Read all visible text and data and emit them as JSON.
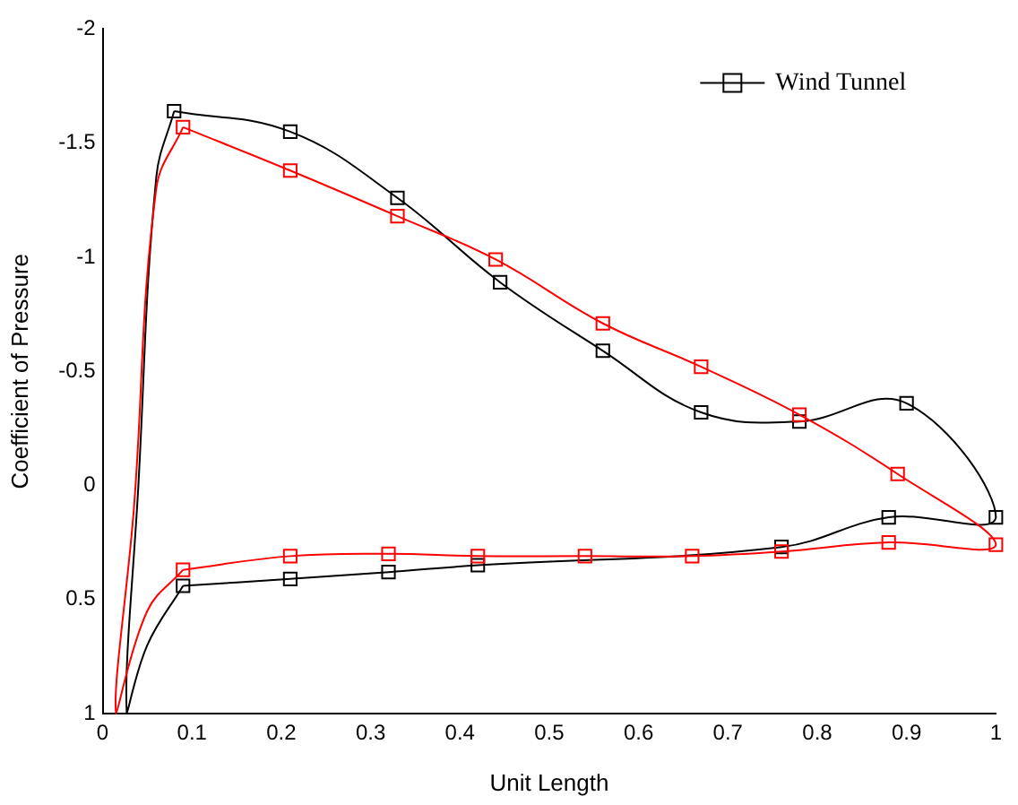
{
  "chart_data": {
    "type": "line",
    "xlabel": "Unit Length",
    "ylabel": "Coefficient of Pressure",
    "xlim": [
      0,
      1
    ],
    "xticks": [
      0,
      0.1,
      0.2,
      0.3,
      0.4,
      0.5,
      0.6,
      0.7,
      0.8,
      0.9,
      1
    ],
    "ylim": [
      1,
      -2
    ],
    "yticks": [
      1,
      0.5,
      0,
      -0.5,
      -1,
      -1.5,
      -2
    ],
    "legend": "top right",
    "grid": false,
    "line_style": "solid",
    "series": [
      {
        "color": "#ff0000",
        "marker": "square",
        "x": [
          0.09,
          0.21,
          0.33,
          0.44,
          0.56,
          0.67,
          0.78,
          0.89,
          1.0,
          0.88,
          0.76,
          0.66,
          0.54,
          0.42,
          0.32,
          0.21,
          0.09
        ],
        "values": [
          -1.57,
          -1.38,
          -1.18,
          -0.99,
          -0.71,
          -0.52,
          -0.31,
          -0.05,
          0.26,
          0.25,
          0.29,
          0.31,
          0.31,
          0.31,
          0.3,
          0.31,
          0.37
        ]
      },
      {
        "name": "Wind Tunnel",
        "color": "#000000",
        "marker": "square",
        "x": [
          0.08,
          0.21,
          0.33,
          0.445,
          0.56,
          0.67,
          0.78,
          0.9,
          1.0,
          0.88,
          0.76,
          0.42,
          0.32,
          0.21,
          0.09
        ],
        "values": [
          -1.64,
          -1.55,
          -1.26,
          -0.89,
          -0.59,
          -0.32,
          -0.28,
          -0.36,
          0.14,
          0.14,
          0.27,
          0.35,
          0.38,
          0.41,
          0.44
        ]
      },
      {
        "color": "#ff0000",
        "marker": "none",
        "x": [
          0.09,
          0.05,
          0.015,
          0.035,
          0.06,
          0.09
        ],
        "values": [
          0.37,
          0.55,
          1.0,
          0.1,
          -1.3,
          -1.57
        ]
      },
      {
        "color": "#000000",
        "marker": "none",
        "x": [
          0.09,
          0.05,
          0.027,
          0.04,
          0.06,
          0.08
        ],
        "values": [
          0.44,
          0.7,
          1.0,
          0.0,
          -1.35,
          -1.64
        ]
      }
    ]
  }
}
